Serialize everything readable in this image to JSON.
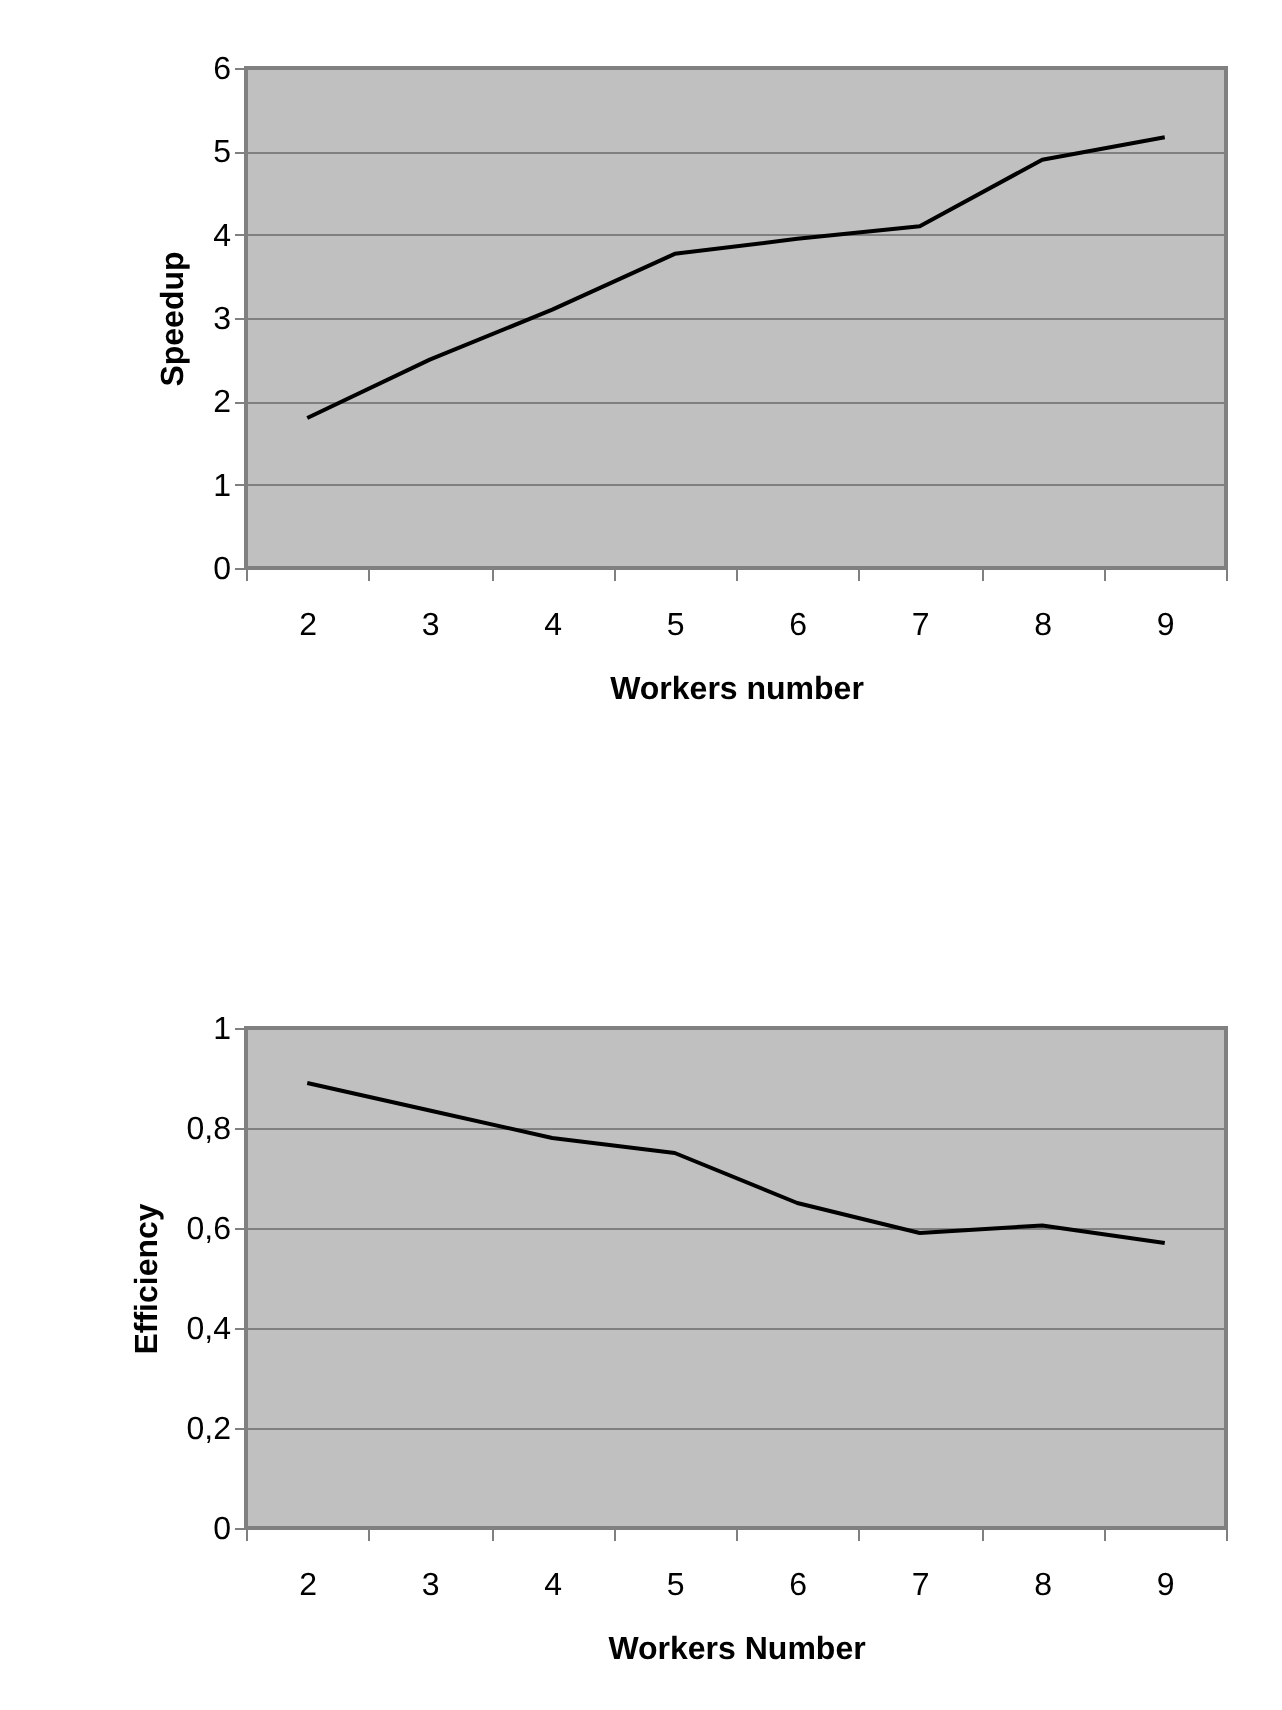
{
  "chart_data": [
    {
      "type": "line",
      "xlabel": "Workers number",
      "ylabel": "Speedup",
      "categories": [
        "2",
        "3",
        "4",
        "5",
        "6",
        "7",
        "8",
        "9"
      ],
      "series": [
        {
          "color": "#000000",
          "values": [
            1.8,
            2.5,
            3.1,
            3.77,
            3.95,
            4.1,
            4.9,
            5.17
          ]
        }
      ],
      "ylim": [
        0,
        6
      ],
      "yticks": [
        0,
        1,
        2,
        3,
        4,
        5,
        6
      ],
      "grid": "y",
      "marker": "none",
      "line_style": "solid"
    },
    {
      "type": "line",
      "xlabel": "Workers Number",
      "ylabel": "Efficiency",
      "categories": [
        "2",
        "3",
        "4",
        "5",
        "6",
        "7",
        "8",
        "9"
      ],
      "series": [
        {
          "color": "#000000",
          "values": [
            0.89,
            0.835,
            0.78,
            0.75,
            0.65,
            0.59,
            0.605,
            0.57
          ]
        }
      ],
      "ylim": [
        0,
        1
      ],
      "yticks": [
        0,
        {
          "value": 0.2,
          "label": "0,2"
        },
        {
          "value": 0.4,
          "label": "0,4"
        },
        {
          "value": 0.6,
          "label": "0,6"
        },
        {
          "value": 0.8,
          "label": "0,8"
        },
        1
      ],
      "grid": "y",
      "marker": "none",
      "line_style": "solid"
    }
  ]
}
